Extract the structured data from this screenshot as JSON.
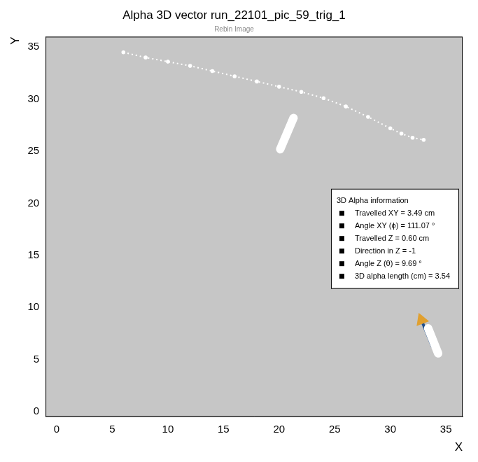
{
  "chart_data": {
    "type": "scatter",
    "title": "Alpha 3D vector run_22101_pic_59_trig_1",
    "subtitle": "Rebin Image",
    "x_label": "X",
    "y_label": "Y",
    "xlim": [
      -1,
      36.5
    ],
    "ylim": [
      -0.5,
      36
    ],
    "xticks": [
      0,
      5,
      10,
      15,
      20,
      25,
      30,
      35
    ],
    "yticks": [
      0,
      5,
      10,
      15,
      20,
      25,
      30,
      35
    ],
    "grid": false,
    "series": [
      {
        "type": "line",
        "color": "#ffffff",
        "marker": "circle",
        "line_style": "dotted",
        "x": [
          6,
          8,
          10,
          12,
          14,
          16,
          18,
          20,
          22,
          24,
          26,
          28,
          30,
          31,
          32,
          33
        ],
        "y": [
          34.5,
          34,
          33.6,
          33.2,
          32.7,
          32.2,
          31.7,
          31.2,
          30.7,
          30.1,
          29.3,
          28.3,
          27.2,
          26.7,
          26.3,
          26.1
        ]
      },
      {
        "type": "line",
        "color": "#ffffff",
        "marker": "none",
        "line_style": "solid",
        "x": [
          20.1,
          21.3
        ],
        "y": [
          25.2,
          28.2
        ]
      },
      {
        "type": "line",
        "color": "#ffffff",
        "marker": "none",
        "line_style": "solid",
        "x": [
          34.3,
          33.4
        ],
        "y": [
          5.6,
          8.0
        ]
      },
      {
        "type": "line",
        "colors": [
          "#1f4f8f",
          "#e0a030"
        ],
        "marker": "arrow",
        "line_style": "solid",
        "x": [
          33.8,
          32.8
        ],
        "y": [
          6.2,
          8.8
        ]
      }
    ],
    "info_box": {
      "title": "3D Alpha information",
      "items": [
        "Travelled XY = 3.49 cm",
        "Angle XY (ϕ) = 111.07 °",
        "Travelled Z = 0.60 cm",
        "Direction in Z = -1",
        "Angle Z (θ) = 9.69 °",
        "3D alpha length (cm) = 3.54"
      ]
    }
  }
}
